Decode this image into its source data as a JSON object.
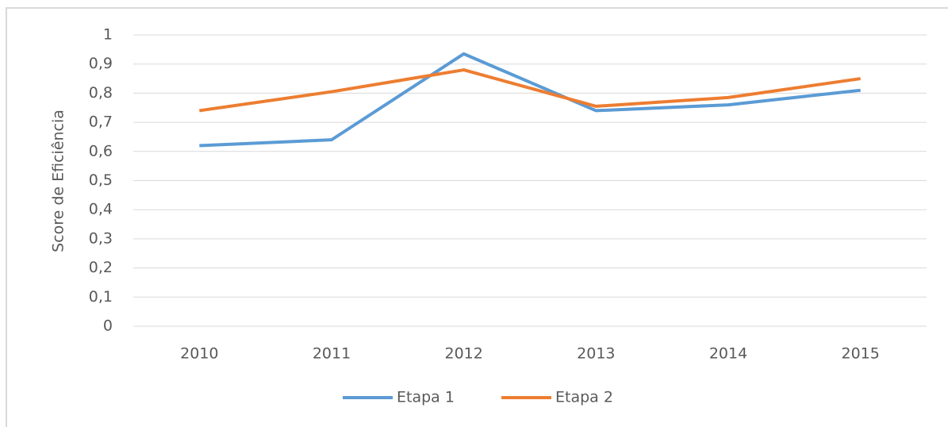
{
  "chart_data": {
    "type": "line",
    "y_axis_label": "Score de Eficiência",
    "categories": [
      "2010",
      "2011",
      "2012",
      "2013",
      "2014",
      "2015"
    ],
    "series": [
      {
        "name": "Etapa 1",
        "color": "#5b9bd5",
        "values": [
          0.62,
          0.64,
          0.935,
          0.74,
          0.76,
          0.81
        ]
      },
      {
        "name": "Etapa 2",
        "color": "#ed7d31",
        "values": [
          0.74,
          0.805,
          0.88,
          0.755,
          0.785,
          0.85
        ]
      }
    ],
    "ylim": [
      0,
      1
    ],
    "yticks": [
      0,
      {
        "value": 0.1,
        "label": "0,1"
      },
      {
        "value": 0.2,
        "label": "0,2"
      },
      {
        "value": 0.3,
        "label": "0,3"
      },
      {
        "value": 0.4,
        "label": "0,4"
      },
      {
        "value": 0.5,
        "label": "0,5"
      },
      {
        "value": 0.6,
        "label": "0,6"
      },
      {
        "value": 0.7,
        "label": "0,7"
      },
      {
        "value": 0.8,
        "label": "0,8"
      },
      {
        "value": 0.9,
        "label": "0,9"
      },
      1
    ],
    "grid": true,
    "legend": "bottom"
  }
}
